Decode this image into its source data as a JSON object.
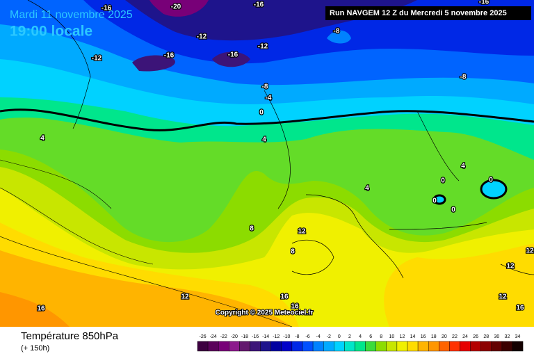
{
  "header": {
    "date": "Mardi 11 novembre 2025",
    "time": "19:00 locale",
    "run": "Run NAVGEM 12 Z du Mercredi 5 novembre 2025"
  },
  "map": {
    "contour_labels": [
      -16,
      -20,
      -16,
      -16,
      -8,
      -12,
      -12,
      -16,
      -16,
      -12,
      -8,
      -8,
      -4,
      0,
      4,
      4,
      4,
      4,
      0,
      0,
      0,
      0,
      8,
      12,
      8,
      12,
      12,
      12,
      16,
      16,
      12,
      16,
      16
    ],
    "copyright": "Copyright © 2025 Meteociel.fr"
  },
  "footer": {
    "title": "Température 850hPa",
    "subtitle": "(+ 150h)"
  },
  "legend": {
    "labels": [
      -26,
      -24,
      -22,
      -20,
      -18,
      -16,
      -14,
      -12,
      -10,
      -8,
      -6,
      -4,
      -2,
      0,
      2,
      4,
      6,
      8,
      10,
      12,
      14,
      16,
      18,
      20,
      22,
      24,
      26,
      28,
      30,
      32,
      34
    ],
    "colors": [
      "#3d0040",
      "#5a005a",
      "#780078",
      "#8c1a8c",
      "#64186e",
      "#3c1478",
      "#1e148c",
      "#0000a0",
      "#0000c8",
      "#0028e6",
      "#0050ff",
      "#0082ff",
      "#00aaff",
      "#00d2ff",
      "#00e6c8",
      "#00e68c",
      "#3cdc3c",
      "#8cdc00",
      "#c8e600",
      "#f0f000",
      "#ffdc00",
      "#ffb400",
      "#ff9600",
      "#ff6400",
      "#ff3200",
      "#e60000",
      "#b40000",
      "#8c0000",
      "#640000",
      "#3c0000",
      "#140000"
    ]
  }
}
